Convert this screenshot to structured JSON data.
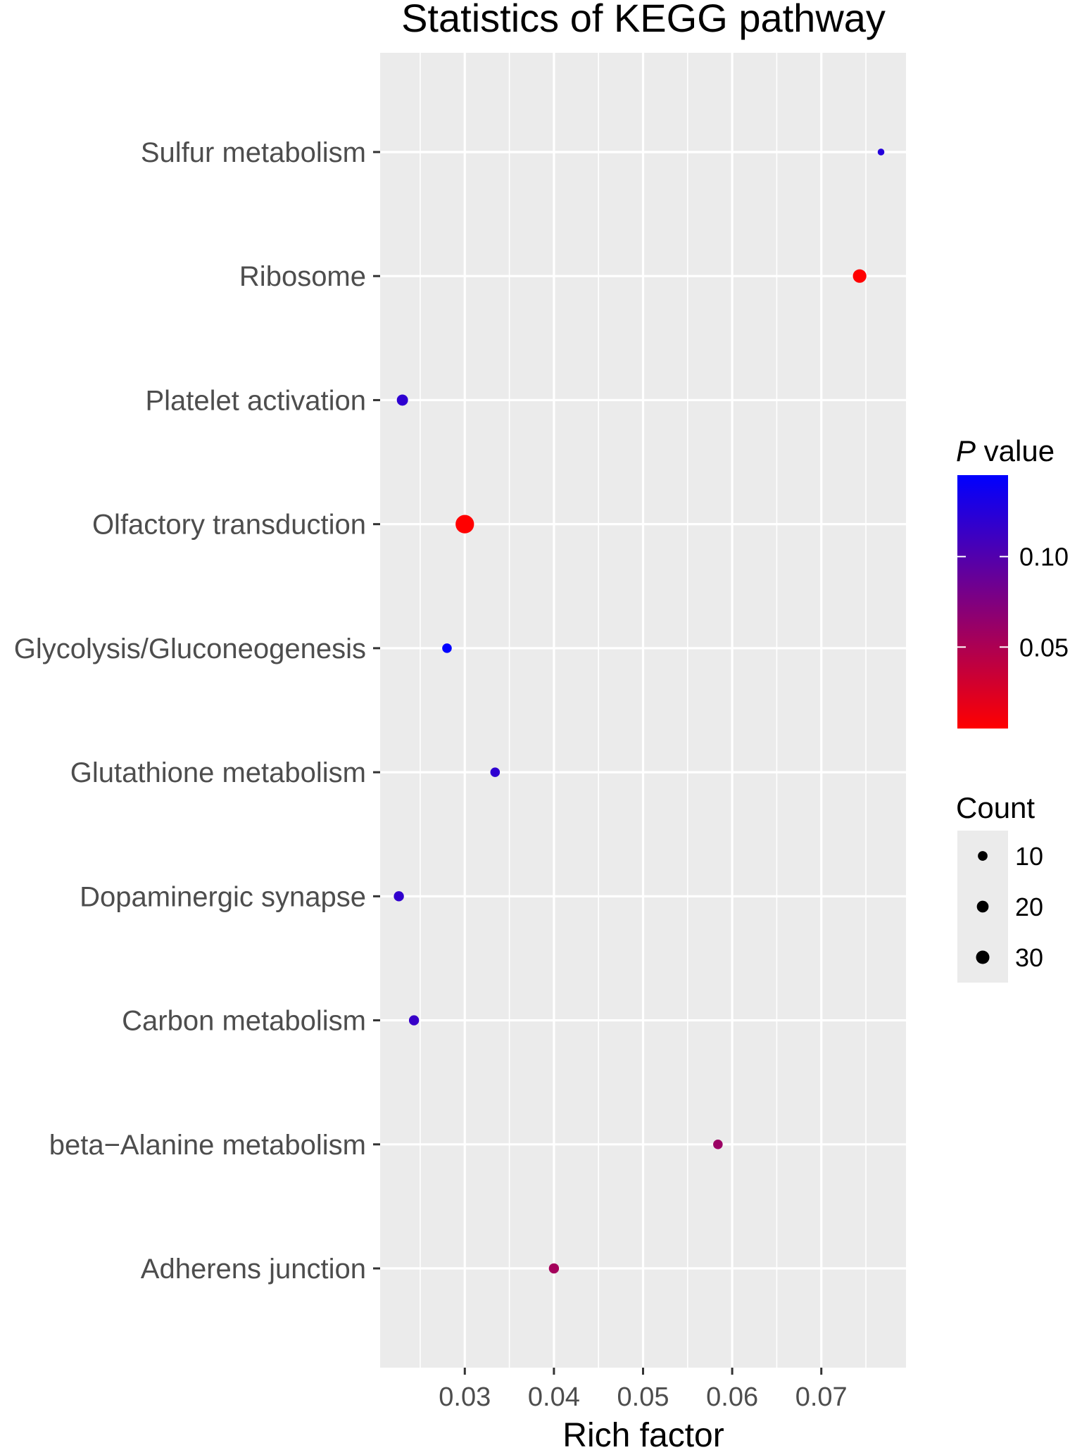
{
  "chart_data": {
    "type": "scatter",
    "title": "Statistics of KEGG pathway",
    "xlabel": "Rich factor",
    "ylabel": "",
    "xlim": [
      0.0205,
      0.0795
    ],
    "x_ticks": [
      0.03,
      0.04,
      0.05,
      0.06,
      0.07
    ],
    "x_tick_labels": [
      "0.03",
      "0.04",
      "0.05",
      "0.06",
      "0.07"
    ],
    "grid": true,
    "categories": [
      "Adherens junction",
      "beta−Alanine metabolism",
      "Carbon metabolism",
      "Dopaminergic synapse",
      "Glutathione metabolism",
      "Glycolysis/Gluconeogenesis",
      "Olfactory transduction",
      "Platelet activation",
      "Ribosome",
      "Sulfur metabolism"
    ],
    "points": [
      {
        "category": "Adherens junction",
        "x": 0.04,
        "count": 9,
        "pvalue": 0.055
      },
      {
        "category": "beta−Alanine metabolism",
        "x": 0.0584,
        "count": 8,
        "pvalue": 0.06
      },
      {
        "category": "Carbon metabolism",
        "x": 0.0243,
        "count": 9,
        "pvalue": 0.115
      },
      {
        "category": "Dopaminergic synapse",
        "x": 0.0226,
        "count": 9,
        "pvalue": 0.118
      },
      {
        "category": "Glutathione metabolism",
        "x": 0.0334,
        "count": 8,
        "pvalue": 0.12
      },
      {
        "category": "Glycolysis/Gluconeogenesis",
        "x": 0.028,
        "count": 8,
        "pvalue": 0.145
      },
      {
        "category": "Olfactory transduction",
        "x": 0.03,
        "count": 30,
        "pvalue": 0.005
      },
      {
        "category": "Platelet activation",
        "x": 0.023,
        "count": 11,
        "pvalue": 0.12
      },
      {
        "category": "Ribosome",
        "x": 0.0743,
        "count": 16,
        "pvalue": 0.005
      },
      {
        "category": "Sulfur metabolism",
        "x": 0.0767,
        "count": 4,
        "pvalue": 0.125
      }
    ],
    "color_legend": {
      "title_italic": "P",
      "title_rest": " value",
      "low_color": "#FF0000",
      "high_color": "#0000FF",
      "range": [
        0.005,
        0.145
      ],
      "ticks": [
        0.05,
        0.1
      ],
      "tick_labels": [
        "0.05",
        "0.10"
      ]
    },
    "size_legend": {
      "title": "Count",
      "values": [
        10,
        20,
        30
      ],
      "labels": [
        "10",
        "20",
        "30"
      ]
    },
    "legend_position": "right",
    "panel_background": "#EBEBEB",
    "grid_color": "#FFFFFF"
  }
}
